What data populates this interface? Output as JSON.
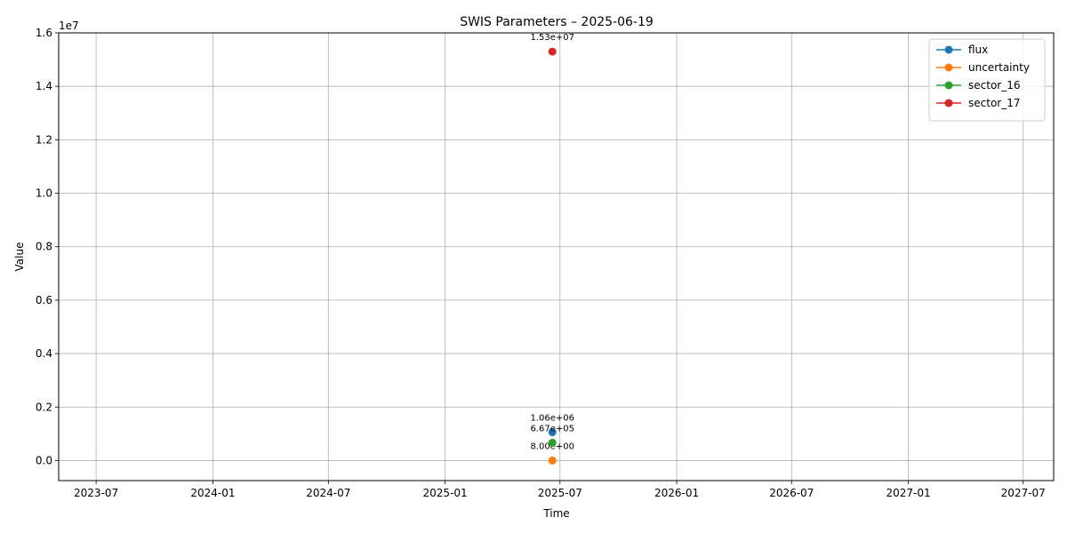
{
  "chart_data": {
    "type": "line",
    "title": "SWIS Parameters – 2025-06-19",
    "xlabel": "Time",
    "ylabel": "Value",
    "y_offset_label": "1e7",
    "x_ticks": [
      "2023-07",
      "2024-01",
      "2024-07",
      "2025-01",
      "2025-07",
      "2026-01",
      "2026-07",
      "2027-01",
      "2027-07"
    ],
    "xlim": [
      "2023-05-03",
      "2027-08-18"
    ],
    "y_ticks": [
      0.0,
      0.2,
      0.4,
      0.6,
      0.8,
      1.0,
      1.2,
      1.4,
      1.6
    ],
    "y_tick_labels": [
      "0.0",
      "0.2",
      "0.4",
      "0.6",
      "0.8",
      "1.0",
      "1.2",
      "1.4",
      "1.6"
    ],
    "ylim": [
      -0.075,
      1.6
    ],
    "grid": true,
    "legend_position": "top-right",
    "series": [
      {
        "name": "flux",
        "color": "#1f77b4",
        "x": [
          "2025-06-19"
        ],
        "y": [
          0.106
        ],
        "labels": [
          "1.06e+06"
        ]
      },
      {
        "name": "uncertainty",
        "color": "#ff7f0e",
        "x": [
          "2025-06-19"
        ],
        "y": [
          8e-07
        ],
        "labels": [
          "8.00e+00"
        ]
      },
      {
        "name": "sector_16",
        "color": "#2ca02c",
        "x": [
          "2025-06-19"
        ],
        "y": [
          0.0667
        ],
        "labels": [
          "6.67e+05"
        ]
      },
      {
        "name": "sector_17",
        "color": "#d62728",
        "x": [
          "2025-06-19"
        ],
        "y": [
          1.53
        ],
        "labels": [
          "1.53e+07"
        ]
      }
    ]
  }
}
